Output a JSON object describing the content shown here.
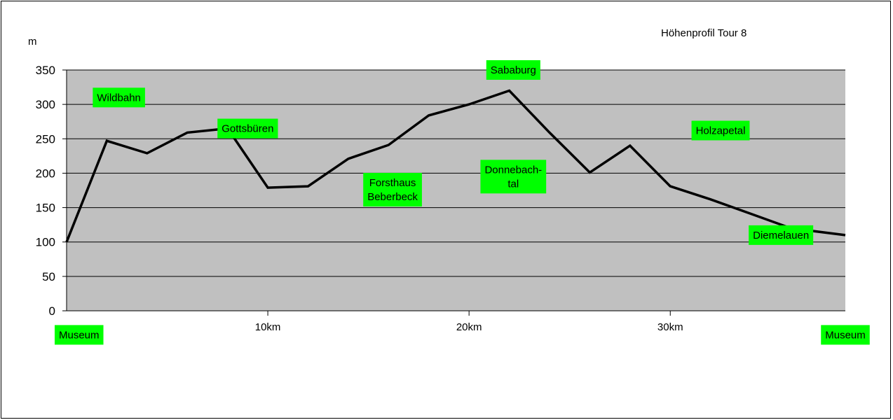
{
  "chart_data": {
    "type": "line",
    "title": "Höhenprofil Tour 8",
    "ylabel": "m",
    "ylim": [
      0,
      350
    ],
    "yticks": [
      "0",
      "50",
      "100",
      "150",
      "200",
      "250",
      "300",
      "350"
    ],
    "xlim": [
      0,
      38.7
    ],
    "xticks": [
      {
        "x": 10,
        "label": "10km"
      },
      {
        "x": 20,
        "label": "20km"
      },
      {
        "x": 30,
        "label": "30km"
      }
    ],
    "grid": true,
    "legend": "none",
    "colors": {
      "plot_bg": "#c0c0c0",
      "line": "#000000",
      "label_bg": "#00ff00"
    },
    "series": [
      {
        "x": [
          0,
          2,
          4,
          6,
          8,
          10,
          12,
          14,
          16,
          18,
          20,
          22,
          24,
          26,
          28,
          30,
          32,
          34,
          36,
          38.7
        ],
        "values": [
          100,
          247,
          229,
          259,
          265,
          179,
          181,
          221,
          241,
          284,
          300,
          320,
          259,
          201,
          240,
          181,
          162,
          141,
          120,
          110
        ]
      }
    ],
    "annotations": [
      {
        "lines": [
          "Museum"
        ],
        "x": 0,
        "y": -35,
        "anchor": "start"
      },
      {
        "lines": [
          "Wildbahn"
        ],
        "x": 2.6,
        "y": 310
      },
      {
        "lines": [
          "Gottsbüren"
        ],
        "x": 9.0,
        "y": 265
      },
      {
        "lines": [
          "Forsthaus",
          "Beberbeck"
        ],
        "x": 16.2,
        "y": 176
      },
      {
        "lines": [
          "Sababurg"
        ],
        "x": 22.2,
        "y": 350
      },
      {
        "lines": [
          "Donnebach-",
          "tal"
        ],
        "x": 22.2,
        "y": 195
      },
      {
        "lines": [
          "Holzapetal"
        ],
        "x": 32.5,
        "y": 262
      },
      {
        "lines": [
          "Diemelauen"
        ],
        "x": 35.5,
        "y": 110
      },
      {
        "lines": [
          "Museum"
        ],
        "x": 38.7,
        "y": -35
      }
    ]
  }
}
